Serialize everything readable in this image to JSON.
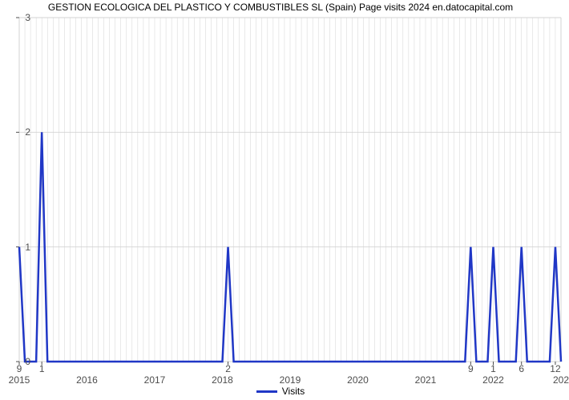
{
  "title": "GESTION ECOLOGICA DEL PLASTICO Y COMBUSTIBLES SL (Spain) Page visits 2024 en.datocapital.com",
  "legend": {
    "label": "Visits",
    "color": "#2037c6",
    "line_width": 3
  },
  "chart": {
    "type": "line",
    "background_color": "#ffffff",
    "grid_color": "#d3d3d3",
    "axis_color": "#4d4d4d",
    "tick_label_color": "#4d4d4d",
    "tick_label_fontsize": 12,
    "title_fontsize": 12,
    "line_color": "#2037c6",
    "line_width": 2.5,
    "xlim": [
      0,
      96
    ],
    "ylim": [
      0,
      3
    ],
    "y_ticks": [
      0,
      1,
      2,
      3
    ],
    "x_year_ticks": [
      {
        "pos": 0,
        "label": "2015"
      },
      {
        "pos": 12,
        "label": "2016"
      },
      {
        "pos": 24,
        "label": "2017"
      },
      {
        "pos": 36,
        "label": "2018"
      },
      {
        "pos": 48,
        "label": "2019"
      },
      {
        "pos": 60,
        "label": "2020"
      },
      {
        "pos": 72,
        "label": "2021"
      },
      {
        "pos": 84,
        "label": "2022"
      },
      {
        "pos": 96,
        "label": "202"
      }
    ],
    "x_sub_ticks": [
      {
        "pos": 0,
        "label": "9"
      },
      {
        "pos": 4,
        "label": "1"
      },
      {
        "pos": 37,
        "label": "2"
      },
      {
        "pos": 80,
        "label": "9"
      },
      {
        "pos": 84,
        "label": "1"
      },
      {
        "pos": 89,
        "label": "6"
      },
      {
        "pos": 95,
        "label": "12"
      }
    ],
    "series": [
      {
        "x": 0,
        "y": 1
      },
      {
        "x": 1,
        "y": 0
      },
      {
        "x": 3,
        "y": 0
      },
      {
        "x": 4,
        "y": 2
      },
      {
        "x": 5,
        "y": 0
      },
      {
        "x": 36,
        "y": 0
      },
      {
        "x": 37,
        "y": 1
      },
      {
        "x": 38,
        "y": 0
      },
      {
        "x": 79,
        "y": 0
      },
      {
        "x": 80,
        "y": 1
      },
      {
        "x": 81,
        "y": 0
      },
      {
        "x": 83,
        "y": 0
      },
      {
        "x": 84,
        "y": 1
      },
      {
        "x": 85,
        "y": 0
      },
      {
        "x": 88,
        "y": 0
      },
      {
        "x": 89,
        "y": 1
      },
      {
        "x": 90,
        "y": 0
      },
      {
        "x": 94,
        "y": 0
      },
      {
        "x": 95,
        "y": 1
      },
      {
        "x": 96,
        "y": 0
      }
    ]
  }
}
